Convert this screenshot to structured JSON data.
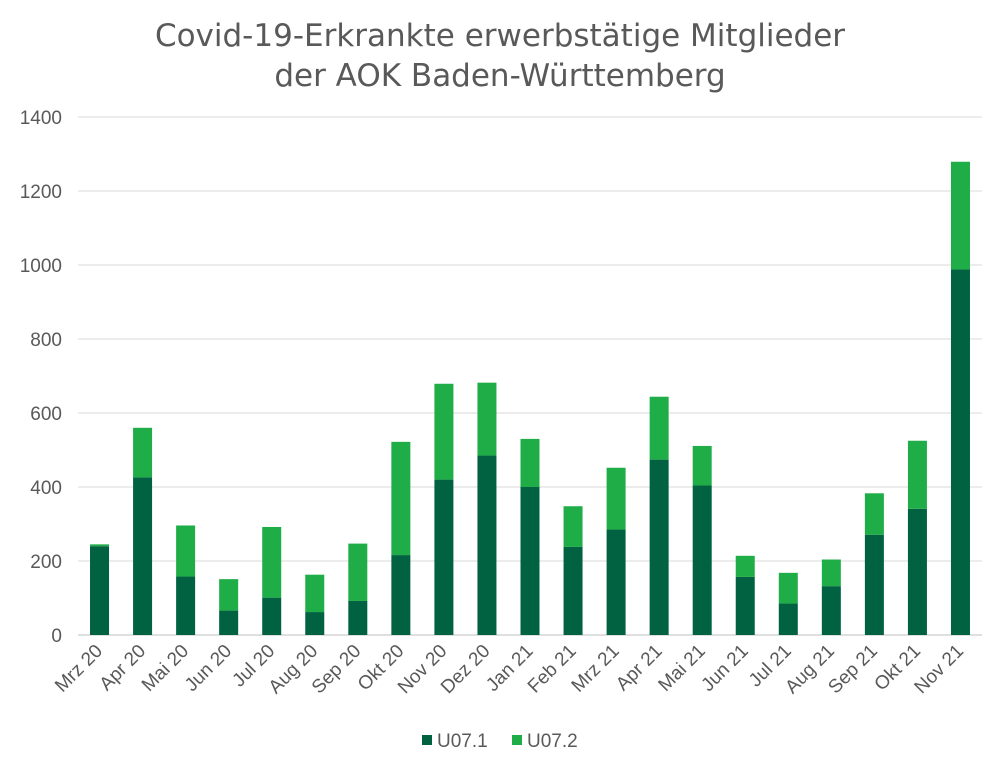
{
  "chart_data": {
    "type": "bar",
    "stacked": true,
    "title": "Covid-19-Erkrankte erwerbstätige Mitglieder",
    "subtitle": "der AOK Baden-Württemberg",
    "xlabel": "",
    "ylabel": "",
    "ylim": [
      0,
      1400
    ],
    "yticks": [
      0,
      200,
      400,
      600,
      800,
      1000,
      1200,
      1400
    ],
    "grid": true,
    "legend_position": "bottom",
    "categories": [
      "Mrz 20",
      "Apr 20",
      "Mai 20",
      "Jun 20",
      "Jul 20",
      "Aug 20",
      "Sep 20",
      "Okt 20",
      "Nov 20",
      "Dez 20",
      "Jan 21",
      "Feb 21",
      "Mrz 21",
      "Apr 21",
      "Mai 21",
      "Jun 21",
      "Jul 21",
      "Aug 21",
      "Sep 21",
      "Okt 21",
      "Nov 21"
    ],
    "series": [
      {
        "name": "U07.1",
        "color": "#006241",
        "values": [
          240,
          426,
          158,
          66,
          101,
          62,
          92,
          216,
          420,
          485,
          400,
          238,
          285,
          474,
          404,
          157,
          85,
          132,
          271,
          341,
          988
        ]
      },
      {
        "name": "U07.2",
        "color": "#1fad47",
        "values": [
          5,
          134,
          138,
          85,
          191,
          101,
          155,
          306,
          259,
          197,
          130,
          110,
          167,
          170,
          107,
          57,
          83,
          72,
          112,
          184,
          291
        ]
      }
    ]
  }
}
